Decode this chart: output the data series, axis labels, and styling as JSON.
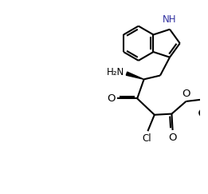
{
  "background_color": "#ffffff",
  "line_color": "#000000",
  "line_width": 1.5,
  "font_size": 8.5,
  "figsize": [
    2.61,
    2.43
  ],
  "dpi": 100,
  "xlim": [
    0,
    10
  ],
  "ylim": [
    0,
    10
  ]
}
